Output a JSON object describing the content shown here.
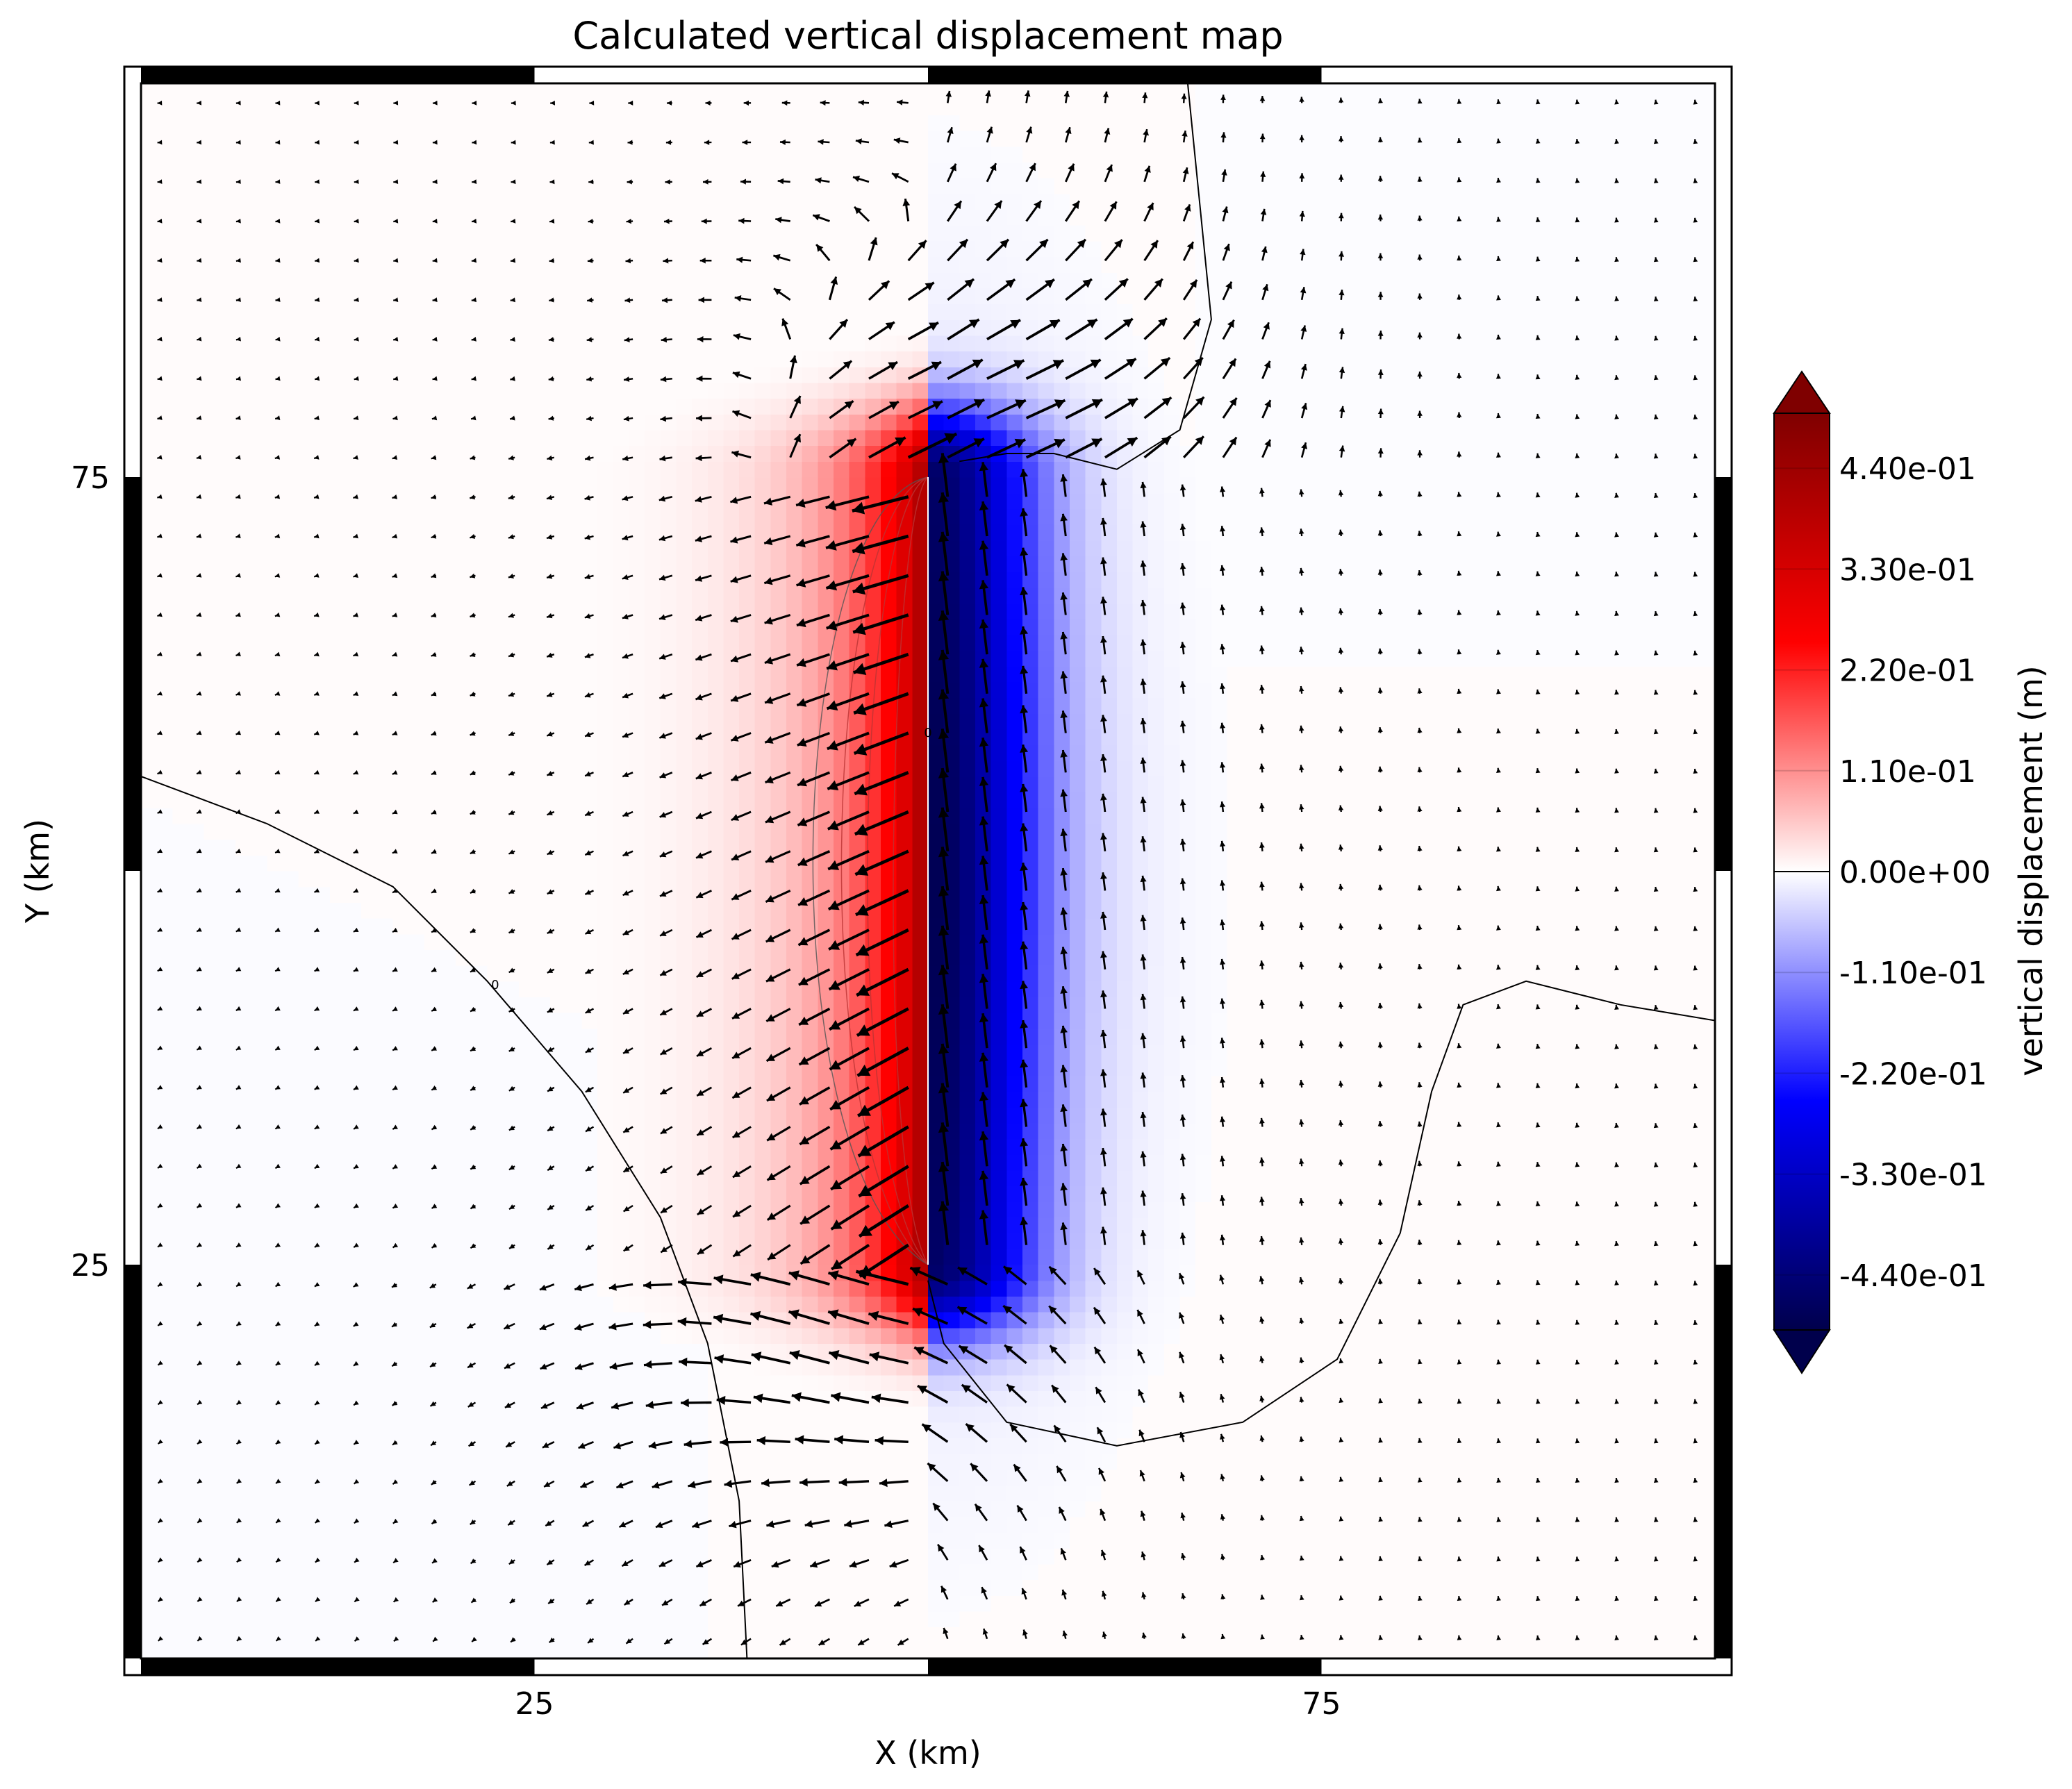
{
  "chart_data": {
    "type": "heatmap",
    "title": "Calculated vertical displacement map",
    "xlabel": "X (km)",
    "ylabel": "Y (km)",
    "xlim": [
      0,
      100
    ],
    "ylim": [
      0,
      100
    ],
    "x_ticks": [
      {
        "value": 25,
        "label": "25"
      },
      {
        "value": 75,
        "label": "75"
      }
    ],
    "y_ticks": [
      {
        "value": 25,
        "label": "25"
      },
      {
        "value": 75,
        "label": "75"
      }
    ],
    "fault": {
      "x": 50,
      "y_start": 25,
      "y_end": 75
    },
    "field": {
      "description_units": "m",
      "uplift_side": "west",
      "subsidence_side": "east",
      "max_uplift": 0.44,
      "max_subsidence": -0.44
    },
    "colorbar": {
      "label": "vertical displacement (m)",
      "min": -0.5,
      "max": 0.5,
      "extend": "both",
      "ticks": [
        {
          "value": 0.44,
          "label": "4.40e-01"
        },
        {
          "value": 0.33,
          "label": "3.30e-01"
        },
        {
          "value": 0.22,
          "label": "2.20e-01"
        },
        {
          "value": 0.11,
          "label": "1.10e-01"
        },
        {
          "value": 0.0,
          "label": "0.00e+00"
        },
        {
          "value": -0.11,
          "label": "-1.10e-01"
        },
        {
          "value": -0.22,
          "label": "-2.20e-01"
        },
        {
          "value": -0.33,
          "label": "-3.30e-01"
        },
        {
          "value": -0.44,
          "label": "-4.40e-01"
        }
      ],
      "colormap": [
        "#00004c",
        "#0000ff",
        "#ffffff",
        "#ff0000",
        "#7f0000"
      ]
    },
    "grid": false,
    "annotations": [
      {
        "text": "0",
        "x": 22.5,
        "y": 42.5
      },
      {
        "text": "0",
        "x": 50,
        "y": 58.5
      }
    ],
    "quiver": {
      "grid_step_km": 2.5,
      "color": "#000000"
    }
  }
}
